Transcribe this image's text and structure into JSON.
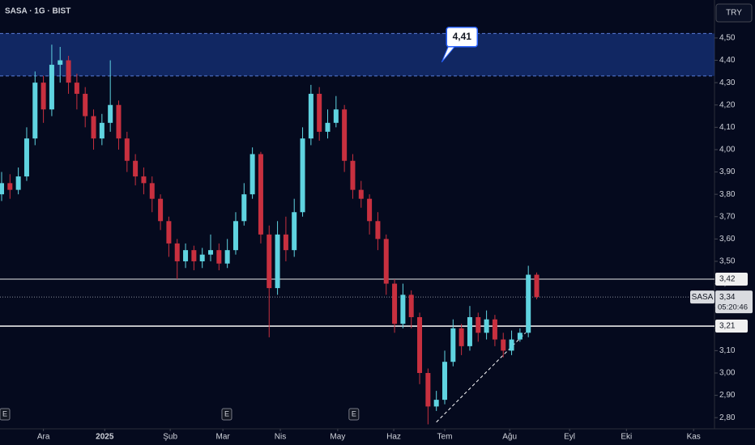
{
  "chart_data": {
    "type": "candlestick",
    "title": "SASA · 1G · BIST",
    "currency": "TRY",
    "colors": {
      "up": "#5fd3e0",
      "down": "#c8303f",
      "background": "#050a1e"
    },
    "x": [
      0,
      3,
      6,
      9,
      12,
      15,
      18,
      21,
      24,
      27,
      30,
      33,
      36,
      39,
      42,
      45,
      48,
      51,
      54,
      57,
      60,
      63,
      66,
      69,
      72,
      75,
      78,
      81,
      84,
      87,
      90,
      93,
      96,
      99,
      102,
      105,
      108,
      111,
      114,
      117,
      120,
      123,
      126,
      129,
      132,
      135,
      138,
      141,
      144,
      147,
      150,
      153,
      156,
      159,
      162,
      165,
      168,
      171,
      174,
      177,
      180,
      183,
      186,
      189,
      192
    ],
    "open": [
      3.8,
      3.85,
      3.82,
      3.88,
      4.05,
      4.3,
      4.18,
      4.38,
      4.4,
      4.3,
      4.25,
      4.15,
      4.05,
      4.12,
      4.2,
      4.05,
      3.95,
      3.88,
      3.85,
      3.78,
      3.68,
      3.58,
      3.5,
      3.55,
      3.5,
      3.53,
      3.55,
      3.49,
      3.55,
      3.68,
      3.8,
      3.98,
      3.62,
      3.38,
      3.62,
      3.55,
      3.72,
      4.05,
      4.25,
      4.08,
      4.12,
      4.18,
      3.95,
      3.82,
      3.78,
      3.68,
      3.6,
      3.4,
      3.22,
      3.35,
      3.25,
      3.0,
      2.85,
      2.88,
      3.05,
      3.2,
      3.12,
      3.25,
      3.18,
      3.24,
      3.15,
      3.1,
      3.15,
      3.18,
      3.44
    ],
    "high": [
      3.9,
      3.89,
      3.92,
      4.1,
      4.35,
      4.33,
      4.47,
      4.46,
      4.42,
      4.34,
      4.28,
      4.18,
      4.16,
      4.4,
      4.22,
      4.08,
      3.98,
      3.92,
      3.88,
      3.8,
      3.7,
      3.6,
      3.58,
      3.57,
      3.56,
      3.62,
      3.58,
      3.6,
      3.72,
      3.85,
      4.01,
      3.99,
      3.66,
      3.68,
      3.7,
      3.78,
      4.1,
      4.29,
      4.28,
      4.18,
      4.24,
      4.2,
      3.98,
      3.86,
      3.8,
      3.72,
      3.62,
      3.42,
      3.4,
      3.37,
      3.27,
      3.02,
      2.92,
      3.1,
      3.24,
      3.22,
      3.3,
      3.27,
      3.28,
      3.26,
      3.18,
      3.19,
      3.2,
      3.48,
      3.45
    ],
    "low": [
      3.77,
      3.78,
      3.8,
      3.86,
      4.02,
      4.12,
      4.15,
      4.3,
      4.25,
      4.18,
      4.1,
      4.0,
      4.02,
      4.08,
      4.0,
      3.9,
      3.84,
      3.8,
      3.72,
      3.64,
      3.52,
      3.42,
      3.47,
      3.46,
      3.47,
      3.5,
      3.46,
      3.47,
      3.53,
      3.66,
      3.78,
      3.58,
      3.16,
      3.35,
      3.5,
      3.52,
      3.7,
      4.02,
      4.04,
      4.05,
      4.1,
      3.9,
      3.78,
      3.74,
      3.62,
      3.55,
      3.35,
      3.18,
      3.2,
      3.2,
      2.95,
      2.77,
      2.83,
      2.86,
      3.03,
      3.08,
      3.1,
      3.14,
      3.15,
      3.12,
      3.07,
      3.08,
      3.14,
      3.16,
      3.33
    ],
    "close": [
      3.85,
      3.82,
      3.88,
      4.05,
      4.3,
      4.18,
      4.38,
      4.4,
      4.3,
      4.25,
      4.15,
      4.05,
      4.12,
      4.2,
      4.05,
      3.95,
      3.88,
      3.85,
      3.78,
      3.68,
      3.58,
      3.5,
      3.55,
      3.5,
      3.53,
      3.55,
      3.49,
      3.55,
      3.68,
      3.8,
      3.98,
      3.62,
      3.38,
      3.62,
      3.55,
      3.72,
      4.05,
      4.25,
      4.08,
      4.12,
      4.18,
      3.95,
      3.82,
      3.78,
      3.68,
      3.6,
      3.4,
      3.22,
      3.35,
      3.25,
      3.0,
      2.85,
      2.88,
      3.05,
      3.2,
      3.12,
      3.25,
      3.18,
      3.24,
      3.15,
      3.1,
      3.15,
      3.18,
      3.44,
      3.34
    ],
    "xlim": [
      -0.58,
      255.8
    ],
    "ylim": [
      2.75,
      4.67
    ],
    "xticks": [
      {
        "value": 15,
        "label": "Ara"
      },
      {
        "value": 37,
        "label": "2025"
      },
      {
        "value": 60.5,
        "label": "Şub"
      },
      {
        "value": 79.4,
        "label": "Mar"
      },
      {
        "value": 100,
        "label": "Nis"
      },
      {
        "value": 120.6,
        "label": "May"
      },
      {
        "value": 140.7,
        "label": "Haz"
      },
      {
        "value": 159,
        "label": "Tem"
      },
      {
        "value": 182.3,
        "label": "Ağu"
      },
      {
        "value": 203.8,
        "label": "Eyl"
      },
      {
        "value": 224.2,
        "label": "Eki"
      },
      {
        "value": 248.3,
        "label": "Kas"
      }
    ],
    "yticks": [
      {
        "value": 2.8,
        "label": "2,80"
      },
      {
        "value": 2.9,
        "label": "2,90"
      },
      {
        "value": 3.0,
        "label": "3,00"
      },
      {
        "value": 3.1,
        "label": "3,10"
      },
      {
        "value": 3.2,
        "label": "3,20"
      },
      {
        "value": 3.3,
        "label": "3,30"
      },
      {
        "value": 3.4,
        "label": "3,40"
      },
      {
        "value": 3.5,
        "label": "3,50"
      },
      {
        "value": 3.6,
        "label": "3,60"
      },
      {
        "value": 3.7,
        "label": "3,70"
      },
      {
        "value": 3.8,
        "label": "3,80"
      },
      {
        "value": 3.9,
        "label": "3,90"
      },
      {
        "value": 4.0,
        "label": "4,00"
      },
      {
        "value": 4.1,
        "label": "4,10"
      },
      {
        "value": 4.2,
        "label": "4,20"
      },
      {
        "value": 4.3,
        "label": "4,30"
      },
      {
        "value": 4.4,
        "label": "4,40"
      },
      {
        "value": 4.5,
        "label": "4,50"
      }
    ],
    "zone": {
      "from": 4.33,
      "to": 4.52
    },
    "callout": {
      "x": 158.5,
      "value": 4.41,
      "label": "4,41"
    },
    "levels": [
      {
        "value": 3.42,
        "label": "3,42"
      },
      {
        "value": 3.21,
        "label": "3,21"
      }
    ],
    "current": {
      "name": "SASA",
      "value": 3.34,
      "label": "3,34",
      "timer": "05:20:46"
    },
    "trendline": {
      "x": [
        156,
        188
      ],
      "y": [
        2.78,
        3.18
      ]
    },
    "events": [
      {
        "x": 0.3,
        "label": "E"
      },
      {
        "x": 80.8,
        "label": "E"
      },
      {
        "x": 126.4,
        "label": "E"
      }
    ]
  }
}
